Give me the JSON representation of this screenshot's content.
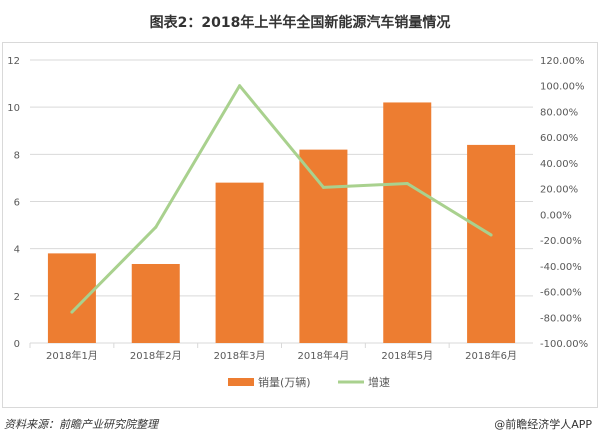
{
  "chart_data": {
    "type": "bar+line",
    "title": "图表2：2018年上半年全国新能源汽车销量情况",
    "categories": [
      "2018年1月",
      "2018年2月",
      "2018年3月",
      "2018年4月",
      "2018年5月",
      "2018年6月"
    ],
    "series": [
      {
        "name": "销量(万辆)",
        "type": "bar",
        "axis": "left",
        "color": "#ed7d31",
        "values": [
          3.8,
          3.35,
          6.8,
          8.2,
          10.2,
          8.4
        ]
      },
      {
        "name": "增速",
        "type": "line",
        "axis": "right",
        "color": "#a9d18e",
        "values": [
          -76,
          -10,
          100,
          21,
          24,
          -16
        ]
      }
    ],
    "left_axis": {
      "ylim": [
        0,
        12
      ],
      "ticks": [
        "0",
        "2",
        "4",
        "6",
        "8",
        "10",
        "12"
      ]
    },
    "right_axis": {
      "ylim": [
        -100,
        120
      ],
      "ticks": [
        "-100.00%",
        "-80.00%",
        "-60.00%",
        "-40.00%",
        "-20.00%",
        "0.00%",
        "20.00%",
        "40.00%",
        "60.00%",
        "80.00%",
        "100.00%",
        "120.00%"
      ]
    },
    "grid": true,
    "legend": "bottom"
  },
  "footer": {
    "source": "资料来源：前瞻产业研究院整理",
    "brand": "@前瞻经济学人APP"
  }
}
